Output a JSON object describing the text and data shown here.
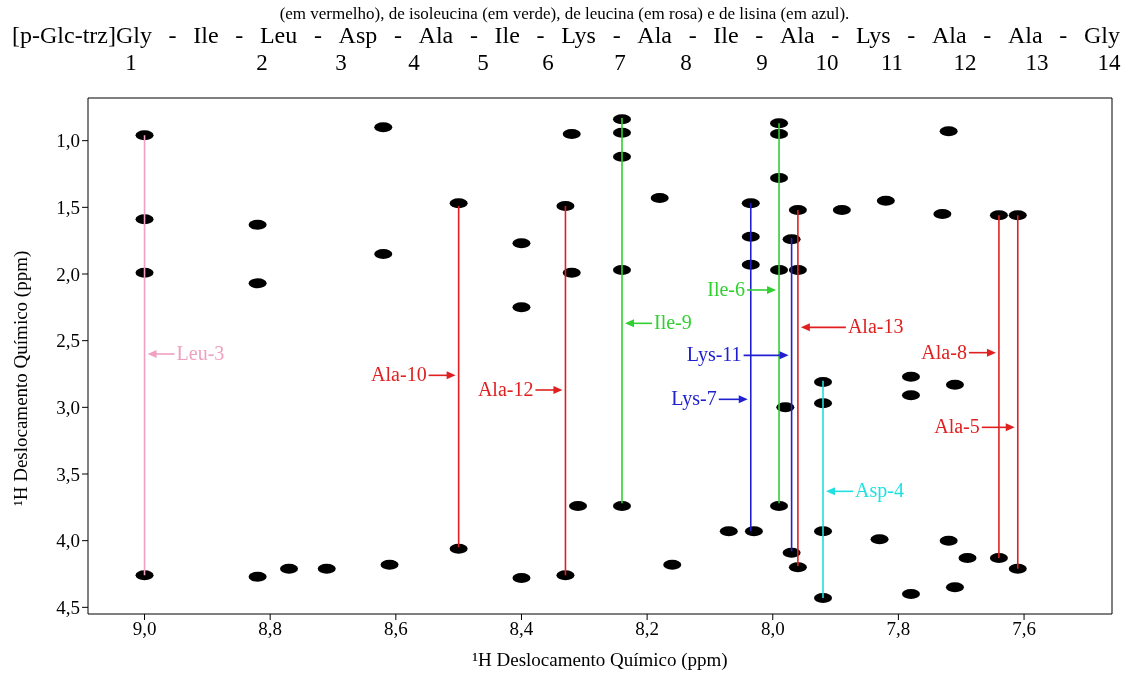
{
  "chart_data": {
    "type": "scatter",
    "title": "[p-Glc-trz]Gly - Ile - Leu - Asp - Ala - Ile - Lys - Ala - Ile - Ala - Lys - Ala - Ala - Gly",
    "subtitle": "1 2 3 4 5 6 7 8 9 10 11 12 13 14",
    "xlabel": "¹H Deslocamento Químico (ppm)",
    "ylabel": "¹H Deslocamento Químico (ppm)",
    "xlim": [
      9.09,
      7.46
    ],
    "ylim": [
      4.55,
      0.68
    ],
    "xticks": [
      {
        "value": 9.0,
        "label": "9,0"
      },
      {
        "value": 8.8,
        "label": "8,8"
      },
      {
        "value": 8.6,
        "label": "8,6"
      },
      {
        "value": 8.4,
        "label": "8,4"
      },
      {
        "value": 8.2,
        "label": "8,2"
      },
      {
        "value": 8.0,
        "label": "8,0"
      },
      {
        "value": 7.8,
        "label": "7,8"
      },
      {
        "value": 7.6,
        "label": "7,6"
      }
    ],
    "yticks": [
      {
        "value": 1.0,
        "label": "1,0"
      },
      {
        "value": 1.5,
        "label": "1,5"
      },
      {
        "value": 2.0,
        "label": "2,0"
      },
      {
        "value": 2.5,
        "label": "2,5"
      },
      {
        "value": 3.0,
        "label": "3,0"
      },
      {
        "value": 3.5,
        "label": "3,5"
      },
      {
        "value": 4.0,
        "label": "4,0"
      },
      {
        "value": 4.5,
        "label": "4,5"
      }
    ],
    "series": [
      {
        "type": "scatter",
        "marker": "circle",
        "color": "#000000",
        "x": [
          9.0,
          9.0,
          9.0,
          9.0,
          8.82,
          8.82,
          8.62,
          8.62,
          8.5,
          8.5,
          8.4,
          8.4,
          8.4,
          8.82,
          8.77,
          8.71,
          8.61,
          8.33,
          8.33,
          8.32,
          8.31,
          8.24,
          8.24,
          8.32,
          8.24,
          8.24,
          8.24,
          8.18,
          8.16,
          8.035,
          8.035,
          8.035,
          8.03,
          8.07,
          7.99,
          7.99,
          7.99,
          7.99,
          7.99,
          7.97,
          7.96,
          7.96,
          7.89,
          7.82,
          7.97,
          7.96,
          7.92,
          7.92,
          7.98,
          7.92,
          7.92,
          7.83,
          7.78,
          7.78,
          7.71,
          7.72,
          7.78,
          7.71,
          7.72,
          7.64,
          7.61,
          7.73,
          7.64,
          7.69,
          7.61
        ],
        "values": [
          0.96,
          1.59,
          1.99,
          4.26,
          1.63,
          2.07,
          0.9,
          1.85,
          1.47,
          4.06,
          1.77,
          2.25,
          4.28,
          4.27,
          4.21,
          4.21,
          4.18,
          1.49,
          4.26,
          1.99,
          3.74,
          0.84,
          0.94,
          0.95,
          1.12,
          1.97,
          3.74,
          1.43,
          4.18,
          1.47,
          1.72,
          1.93,
          3.93,
          3.93,
          0.87,
          0.95,
          1.28,
          3.74,
          1.97,
          1.74,
          1.52,
          1.97,
          1.52,
          1.45,
          4.09,
          4.2,
          2.81,
          2.97,
          3.0,
          3.93,
          4.43,
          3.99,
          2.77,
          2.91,
          2.83,
          0.93,
          4.4,
          4.35,
          4.0,
          1.56,
          1.56,
          1.55,
          4.13,
          4.13,
          4.21
        ]
      },
      {
        "type": "line",
        "color": "#f0a0c0",
        "x": [
          9.0,
          9.0
        ],
        "values": [
          0.96,
          4.26
        ]
      },
      {
        "type": "line",
        "color": "#e02020",
        "x": [
          8.5,
          8.5
        ],
        "values": [
          1.49,
          4.05
        ]
      },
      {
        "type": "line",
        "color": "#e02020",
        "x": [
          8.33,
          8.33
        ],
        "values": [
          1.49,
          4.26
        ]
      },
      {
        "type": "line",
        "color": "#30d030",
        "x": [
          8.24,
          8.24
        ],
        "values": [
          0.83,
          3.72
        ]
      },
      {
        "type": "line",
        "color": "#2020d0",
        "x": [
          8.035,
          8.035
        ],
        "values": [
          1.47,
          3.93
        ]
      },
      {
        "type": "line",
        "color": "#30d030",
        "x": [
          7.99,
          7.99
        ],
        "values": [
          0.87,
          3.72
        ]
      },
      {
        "type": "line",
        "color": "#2020d0",
        "x": [
          7.97,
          7.97
        ],
        "values": [
          1.73,
          4.08
        ]
      },
      {
        "type": "line",
        "color": "#e02020",
        "x": [
          7.96,
          7.96
        ],
        "values": [
          1.52,
          4.19
        ]
      },
      {
        "type": "line",
        "color": "#20e0e0",
        "x": [
          7.92,
          7.92
        ],
        "values": [
          2.8,
          4.43
        ]
      },
      {
        "type": "line",
        "color": "#e02020",
        "x": [
          7.64,
          7.64
        ],
        "values": [
          1.56,
          4.13
        ]
      },
      {
        "type": "line",
        "color": "#e02020",
        "x": [
          7.61,
          7.61
        ],
        "values": [
          1.56,
          4.21
        ]
      }
    ],
    "annotations": [
      "(em vermelho), de isoleucina (em verde), de leucina (em rosa) e de lisina (em azul).",
      {
        "text": "Leu-3",
        "x": 9.0,
        "y": 2.6
      },
      {
        "text": "Ala-10",
        "x": 8.5,
        "y": 2.76
      },
      {
        "text": "Ala-12",
        "x": 8.33,
        "y": 2.87
      },
      {
        "text": "Ile-9",
        "x": 8.24,
        "y": 2.37
      },
      {
        "text": "Ile-6",
        "x": 7.99,
        "y": 2.12
      },
      {
        "text": "Ala-13",
        "x": 7.96,
        "y": 2.4
      },
      {
        "text": "Lys-11",
        "x": 7.97,
        "y": 2.61
      },
      {
        "text": "Ala-8",
        "x": 7.64,
        "y": 2.59
      },
      {
        "text": "Lys-7",
        "x": 8.035,
        "y": 2.94
      },
      {
        "text": "Ala-5",
        "x": 7.61,
        "y": 3.15
      },
      {
        "text": "Asp-4",
        "x": 7.92,
        "y": 3.63
      }
    ]
  }
}
